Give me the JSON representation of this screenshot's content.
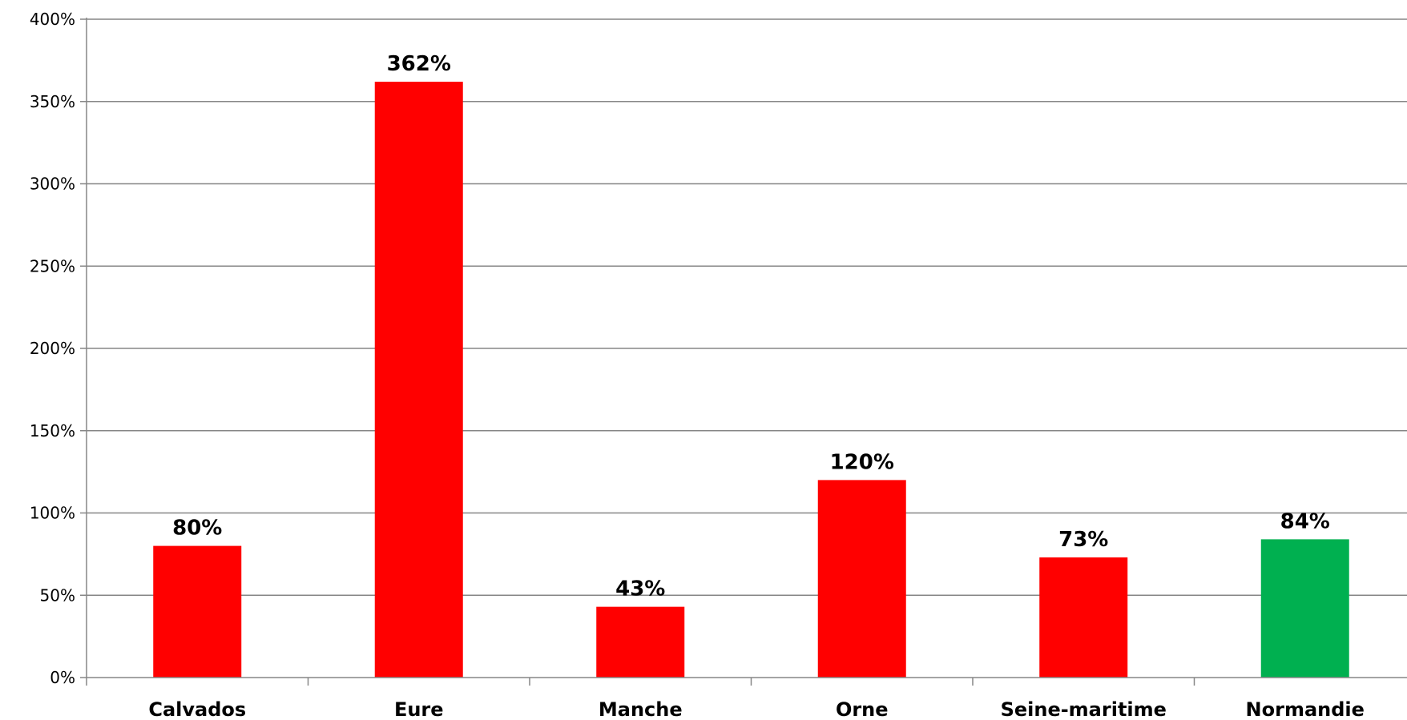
{
  "chart_data": {
    "type": "bar",
    "categories": [
      "Calvados",
      "Eure",
      "Manche",
      "Orne",
      "Seine-maritime",
      "Normandie"
    ],
    "values": [
      80,
      362,
      43,
      120,
      73,
      84
    ],
    "value_labels": [
      "80%",
      "362%",
      "43%",
      "120%",
      "73%",
      "84%"
    ],
    "bar_colors": [
      "#ff0000",
      "#ff0000",
      "#ff0000",
      "#ff0000",
      "#ff0000",
      "#00b050"
    ],
    "title": "",
    "xlabel": "",
    "ylabel": "",
    "ylim": [
      0,
      400
    ],
    "y_ticks": [
      0,
      50,
      100,
      150,
      200,
      250,
      300,
      350,
      400
    ],
    "y_tick_labels": [
      "0%",
      "50%",
      "100%",
      "150%",
      "200%",
      "250%",
      "300%",
      "350%",
      "400%"
    ],
    "grid": true,
    "legend": "none"
  }
}
